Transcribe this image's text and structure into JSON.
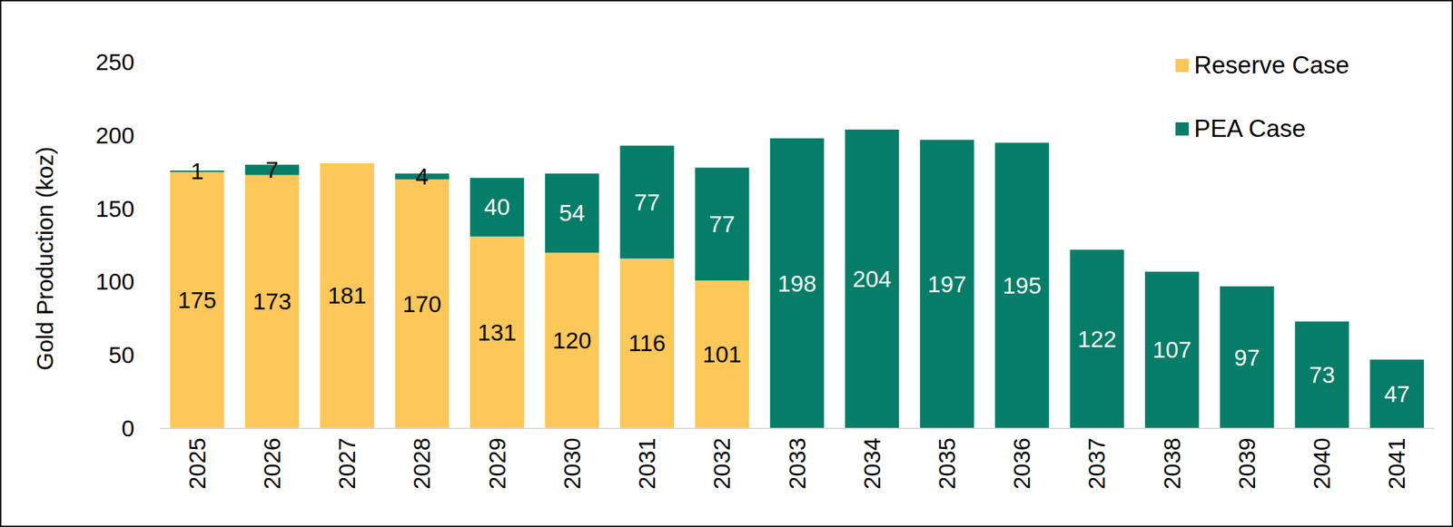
{
  "chart_data": {
    "type": "bar",
    "stacked": true,
    "data_labels": true,
    "grid": false,
    "legend": "top-right",
    "y_label": "Gold Production (koz)",
    "categories": [
      "2025",
      "2026",
      "2027",
      "2028",
      "2029",
      "2030",
      "2031",
      "2032",
      "2033",
      "2034",
      "2035",
      "2036",
      "2037",
      "2038",
      "2039",
      "2040",
      "2041"
    ],
    "series": [
      {
        "name": "Reserve Case",
        "color": "#fdc75a",
        "values": [
          175,
          173,
          181,
          170,
          131,
          120,
          116,
          101,
          null,
          null,
          null,
          null,
          null,
          null,
          null,
          null,
          null
        ]
      },
      {
        "name": "PEA Case",
        "color": "#067d68",
        "values": [
          1,
          7,
          null,
          4,
          40,
          54,
          77,
          77,
          198,
          204,
          197,
          195,
          122,
          107,
          97,
          73,
          47
        ]
      }
    ],
    "ylim": [
      0,
      250
    ],
    "yticks": [
      0,
      50,
      100,
      150,
      200,
      250
    ]
  }
}
